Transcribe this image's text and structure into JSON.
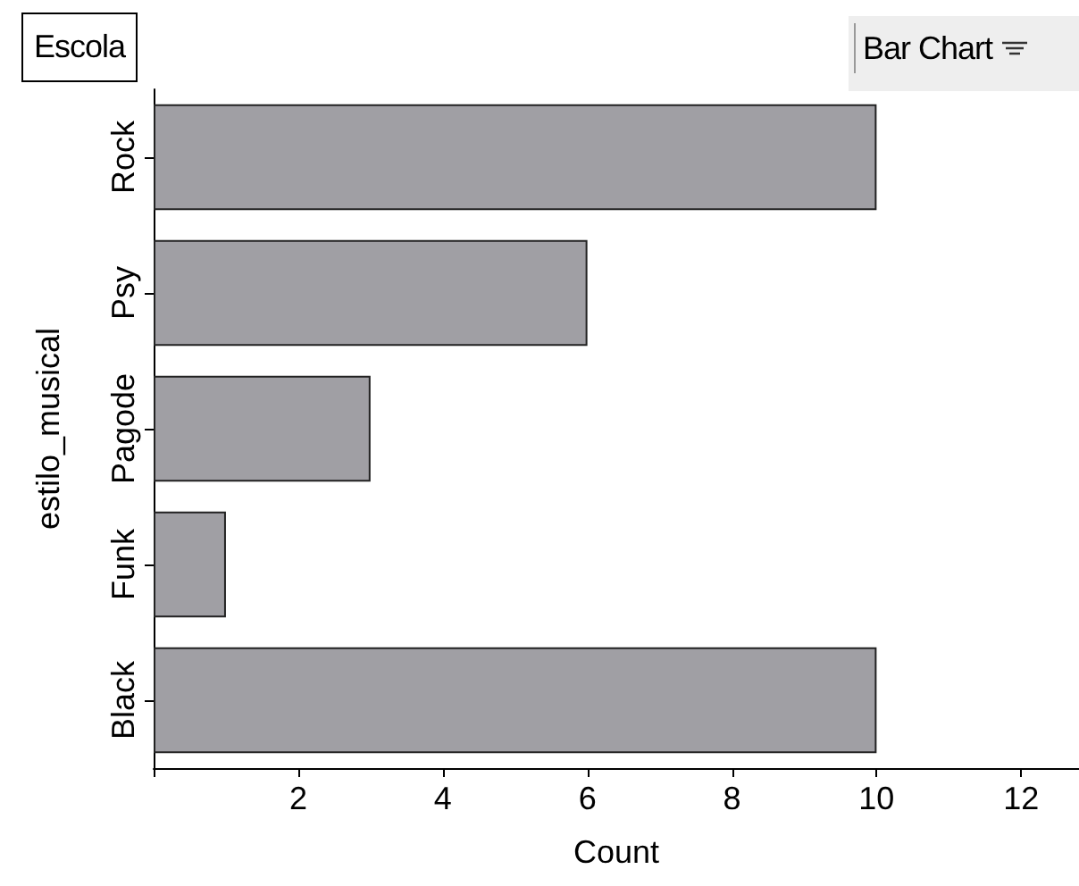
{
  "chart_data": {
    "type": "bar",
    "orientation": "horizontal",
    "title": "Escola",
    "xlabel": "Count",
    "ylabel": "estilo_musical",
    "categories": [
      "Rock",
      "Psy",
      "Pagode",
      "Funk",
      "Black"
    ],
    "values": [
      10,
      6,
      3,
      1,
      10
    ],
    "color": "#a09fa4",
    "xlim": [
      0,
      12.8
    ],
    "xticks": [
      {
        "value": 0,
        "label": null
      },
      2,
      4,
      6,
      8,
      10,
      12
    ],
    "grid": false,
    "annotations": [
      "Bar Chart"
    ]
  }
}
